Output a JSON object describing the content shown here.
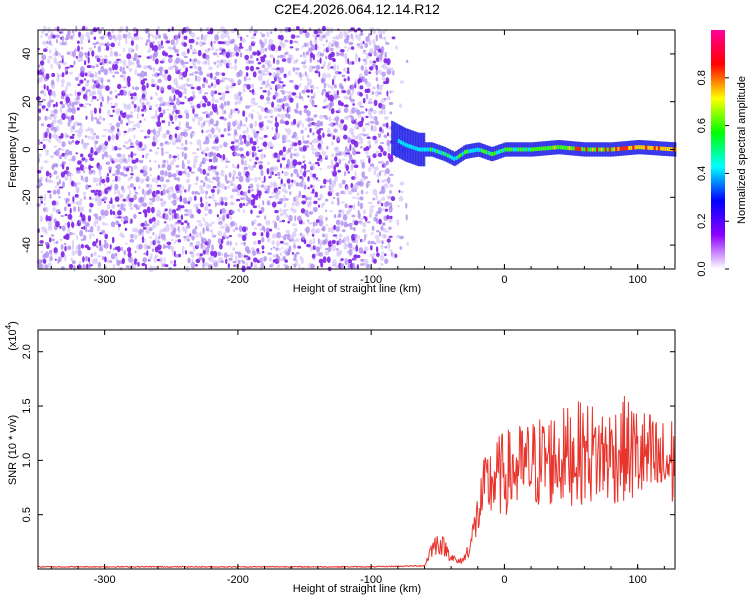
{
  "title": "C2E4.2026.064.12.14.R12",
  "chart_data": [
    {
      "type": "heatmap",
      "xlabel": "Height of straight line (km)",
      "ylabel": "Frequency (Hz)",
      "xlim": [
        -350,
        128
      ],
      "ylim": [
        -50,
        50
      ],
      "x_ticks": [
        -300,
        -200,
        -100,
        0,
        100
      ],
      "x_tick_labels": [
        "-300",
        "-200",
        "-100",
        "0",
        "100"
      ],
      "y_ticks": [
        -40,
        -20,
        0,
        20,
        40
      ],
      "y_tick_labels": [
        "-40",
        "-20",
        "0",
        "20",
        "40"
      ],
      "colorbar": {
        "label": "Normalized spectral amplitude",
        "range": [
          0,
          1
        ],
        "ticks": [
          0.0,
          0.2,
          0.4,
          0.6,
          0.8
        ],
        "tick_labels": [
          "0.0",
          "0.2",
          "0.4",
          "0.6",
          "0.8"
        ],
        "colors": [
          "#ffffff",
          "#8b00ff",
          "#0000ff",
          "#00ffff",
          "#00ff00",
          "#ffff00",
          "#ff0000",
          "#ff0099"
        ]
      },
      "noise_region_x": [
        -350,
        -85
      ],
      "signal_start_x": -85,
      "signal_track": {
        "x": [
          -85,
          -75,
          -65,
          -55,
          -45,
          -38,
          -30,
          -20,
          -10,
          0,
          20,
          40,
          60,
          80,
          100,
          128
        ],
        "y": [
          5,
          2,
          0,
          0,
          -2,
          -4,
          -1,
          0,
          -2,
          0,
          0,
          1,
          0,
          0,
          1,
          0
        ]
      }
    },
    {
      "type": "line",
      "xlabel": "Height of straight line (km)",
      "ylabel": "SNR (10 * v/v)",
      "y_multiplier_label": "(x10",
      "y_multiplier_exp": "4",
      "xlim": [
        -350,
        128
      ],
      "ylim": [
        0,
        2.2
      ],
      "x_ticks": [
        -300,
        -200,
        -100,
        0,
        100
      ],
      "x_tick_labels": [
        "-300",
        "-200",
        "-100",
        "0",
        "100"
      ],
      "y_ticks": [
        0.5,
        1.0,
        1.5,
        2.0
      ],
      "y_tick_labels": [
        "0.5",
        "1.0",
        "1.5",
        "2.0"
      ],
      "series": [
        {
          "color": "#e8342c",
          "x": [
            -350,
            -100,
            -60,
            -55,
            -50,
            -45,
            -40,
            -35,
            -30,
            -25,
            -20,
            -15,
            -10,
            -5,
            0,
            10,
            20,
            30,
            40,
            50,
            60,
            70,
            80,
            90,
            100,
            110,
            120,
            128
          ],
          "y": [
            0.02,
            0.02,
            0.03,
            0.18,
            0.25,
            0.2,
            0.12,
            0.06,
            0.1,
            0.25,
            0.5,
            0.72,
            0.8,
            0.85,
            0.88,
            0.92,
            0.95,
            1.0,
            1.02,
            1.05,
            1.08,
            1.05,
            1.05,
            1.1,
            1.05,
            1.0,
            0.95,
            1.0
          ]
        }
      ]
    }
  ]
}
